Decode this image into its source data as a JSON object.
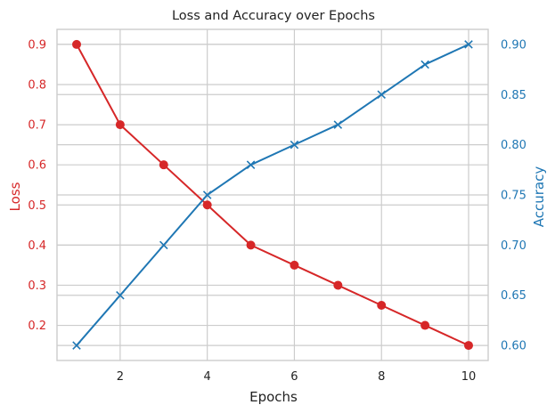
{
  "chart_data": {
    "type": "line",
    "title": "Loss and Accuracy over Epochs",
    "xlabel": "Epochs",
    "ylabel_left": "Loss",
    "ylabel_right": "Accuracy",
    "x": [
      1,
      2,
      3,
      4,
      5,
      6,
      7,
      8,
      9,
      10
    ],
    "x_ticks": [
      2,
      4,
      6,
      8,
      10
    ],
    "xlim": [
      0.55,
      10.45
    ],
    "grid": true,
    "series": [
      {
        "axis": "left",
        "color": "#d62728",
        "marker": "circle",
        "values": [
          0.9,
          0.7,
          0.6,
          0.5,
          0.4,
          0.35,
          0.3,
          0.25,
          0.2,
          0.15
        ]
      },
      {
        "axis": "right",
        "color": "#1f77b4",
        "marker": "x",
        "values": [
          0.6,
          0.65,
          0.7,
          0.75,
          0.78,
          0.8,
          0.82,
          0.85,
          0.88,
          0.9
        ]
      }
    ],
    "y_left": {
      "ticks": [
        "0.2",
        "0.3",
        "0.4",
        "0.5",
        "0.6",
        "0.7",
        "0.8",
        "0.9"
      ],
      "lim": [
        0.1125,
        0.9375
      ],
      "color": "#d62728"
    },
    "y_right": {
      "ticks": [
        "0.60",
        "0.65",
        "0.70",
        "0.75",
        "0.80",
        "0.85",
        "0.90"
      ],
      "lim": [
        0.585,
        0.915
      ],
      "color": "#1f77b4"
    }
  }
}
